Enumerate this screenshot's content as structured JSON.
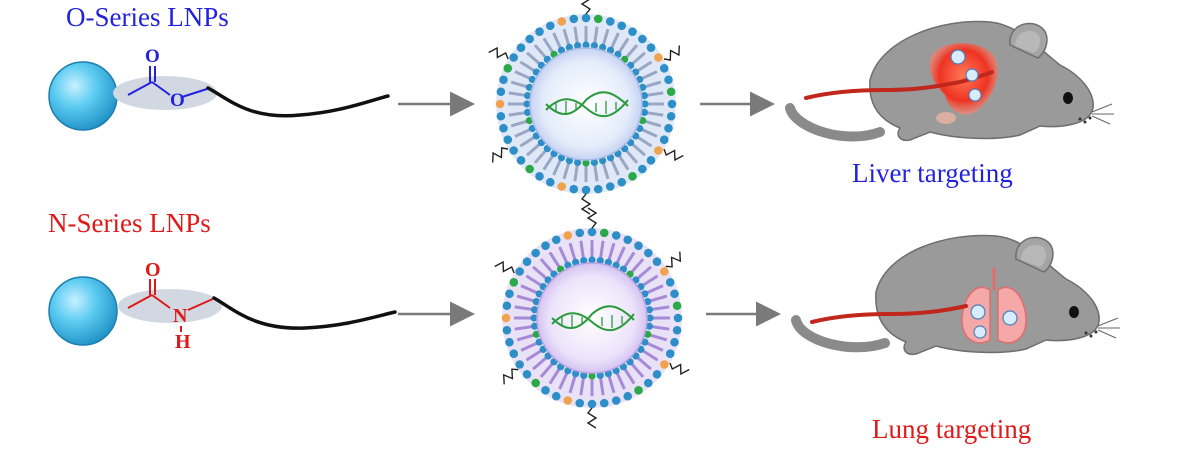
{
  "labels": {
    "o_series": "O-Series LNPs",
    "n_series": "N-Series LNPs",
    "liver": "Liver targeting",
    "lung": "Lung targeting"
  },
  "atoms": {
    "o_carbonyl": "O",
    "o_ester": "O",
    "n_carbonyl": "O",
    "n_amide": "N",
    "n_hydrogen": "H"
  },
  "colors": {
    "o_series": "#2222dd",
    "n_series": "#e01818",
    "head_sphere": "#4fc6ee",
    "liver_organ": "#ee3322",
    "lung_organ": "#f08a8a",
    "blood_vessel": "#c0281e",
    "mouse_body": "#9a9a9a",
    "arrow": "#7a7a7a"
  },
  "icons": [
    "lipid-head-sphere",
    "ester-linker",
    "amide-linker",
    "lipid-tail",
    "lnp-particle",
    "mrna-strand",
    "mouse",
    "liver-organ",
    "lung-organ",
    "blood-vessel"
  ]
}
